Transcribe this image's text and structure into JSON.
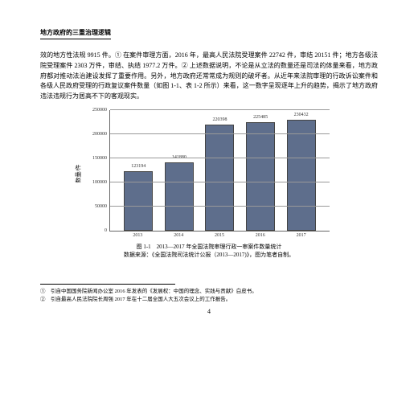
{
  "header": "地方政府的三重治理逻辑",
  "paragraph": "效的地方性法规 9915 件。① 在案件审理方面，2016 年，最高人民法院受理案件 22742 件，审结 20151 件；地方各级法院受理案件 2303 万件，审结、执结 1977.2 万件。② 上述数据说明，不论是从立法的数量还是司法的体量来看，地方政府都对推动法治建设发挥了重要作用。另外，地方政府还常常成为规则的破坏者。从近年来法院审理的行政诉讼案件和各级人民政府受理的行政复议案件数量（如图 1-1、表 1-2 所示）来看，这一数字呈现逐年上升的趋势，揭示了地方政府违法违规行为居高不下的客观现实。",
  "chart": {
    "type": "bar",
    "y_label": "数量/件",
    "y_max": 250000,
    "y_ticks": [
      0,
      50000,
      100000,
      150000,
      200000,
      250000
    ],
    "categories": [
      "2013",
      "2014",
      "2015",
      "2016",
      "2017"
    ],
    "values": [
      123194,
      141880,
      220398,
      225485,
      230432
    ],
    "bar_color": "#5e6e8c",
    "grid_color": "#999999"
  },
  "caption_line1": "图 1-1　2013—2017 年全国法院审理行政一审案件数量统计",
  "caption_line2": "数据来源：《全国法院司法统计公报（2013—2017)》，图为笔者自制。",
  "footnote1": "①　引自中国国务院新闻办公室 2016 年发表的《发展权：中国的理念、实践与贡献》白皮书。",
  "footnote2": "②　引自最高人民法院院长周强 2017 年在十二届全国人大五次会议上的工作报告。",
  "page_number": "4"
}
